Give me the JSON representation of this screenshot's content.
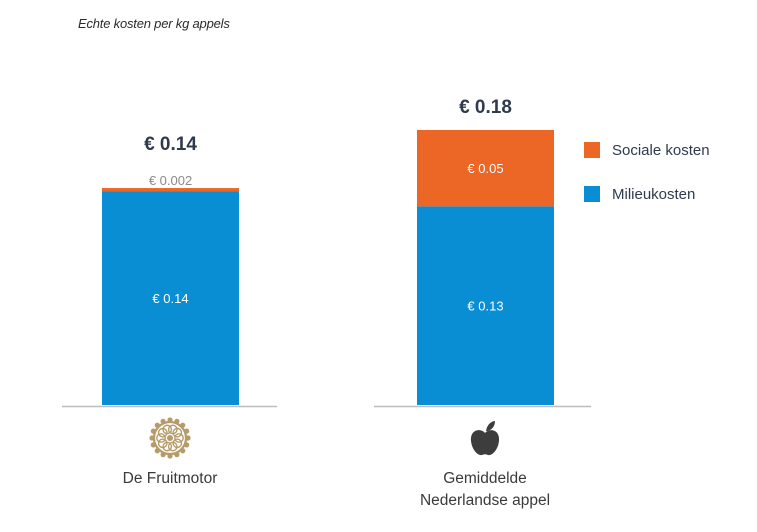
{
  "chart_data": {
    "type": "bar",
    "stacked": true,
    "subtitle": "Echte kosten per kg appels",
    "categories": [
      {
        "lines": [
          "De Fruitmotor"
        ],
        "icon": "rosette-logo-icon"
      },
      {
        "lines": [
          "Gemiddelde",
          "Nederlandse appel"
        ],
        "icon": "apple-icon"
      }
    ],
    "totals": [
      "€ 0.14",
      "€ 0.18"
    ],
    "series": [
      {
        "name": "Milieukosten",
        "color": "#0a8ed3",
        "values": [
          0.14,
          0.13
        ],
        "labels": [
          "€ 0.14",
          "€ 0.13"
        ]
      },
      {
        "name": "Sociale kosten",
        "color": "#ec6625",
        "values": [
          0.002,
          0.05
        ],
        "labels": [
          "€ 0.002",
          "€ 0.05"
        ]
      }
    ],
    "legend_order": [
      1,
      0
    ],
    "legend_position": "right",
    "ylim": [
      0,
      0.18
    ],
    "grid": false
  },
  "colors": {
    "baseline": "#bdbdbd",
    "logo_gold": "#b69b6a",
    "apple_dark": "#3d3d3d",
    "total_text": "#2f3b4c",
    "small_label_text": "#8a8a8a",
    "inner_label_text": "#ffffff"
  }
}
